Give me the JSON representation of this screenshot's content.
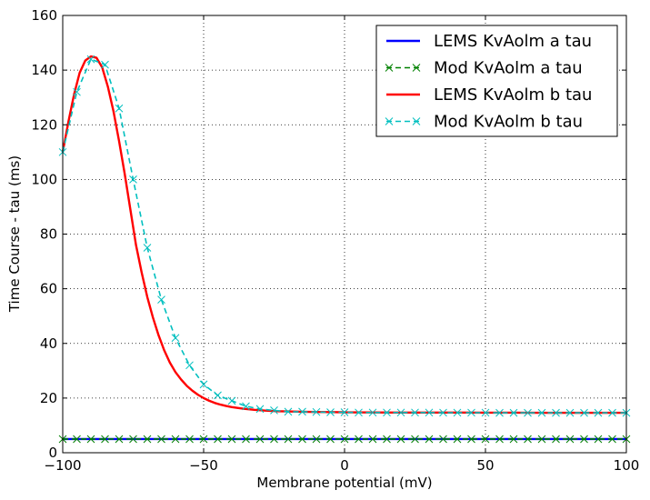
{
  "chart_data": {
    "type": "line",
    "title": "",
    "xlabel": "Membrane potential (mV)",
    "ylabel": "Time Course - tau (ms)",
    "xlim": [
      -100,
      100
    ],
    "ylim": [
      0,
      160
    ],
    "x_ticks": [
      -100,
      -50,
      0,
      50,
      100
    ],
    "x_tick_labels": [
      "−100",
      "−50",
      "0",
      "50",
      "100"
    ],
    "y_ticks": [
      0,
      20,
      40,
      60,
      80,
      100,
      120,
      140,
      160
    ],
    "y_tick_labels": [
      "0",
      "20",
      "40",
      "60",
      "80",
      "100",
      "120",
      "140",
      "160"
    ],
    "grid": true,
    "legend_position": "top-right",
    "series": [
      {
        "name": "LEMS KvAolm a tau",
        "style": "solid",
        "marker": "none",
        "color": "#0000ff",
        "x": [
          -100,
          100
        ],
        "y": [
          5,
          5
        ]
      },
      {
        "name": "Mod KvAolm a tau",
        "style": "dashed",
        "marker": "x",
        "color": "#008000",
        "x": [
          -100,
          -95,
          -90,
          -85,
          -80,
          -75,
          -70,
          -65,
          -60,
          -55,
          -50,
          -45,
          -40,
          -35,
          -30,
          -25,
          -20,
          -15,
          -10,
          -5,
          0,
          5,
          10,
          15,
          20,
          25,
          30,
          35,
          40,
          45,
          50,
          55,
          60,
          65,
          70,
          75,
          80,
          85,
          90,
          95,
          100
        ],
        "y": [
          5,
          5,
          5,
          5,
          5,
          5,
          5,
          5,
          5,
          5,
          5,
          5,
          5,
          5,
          5,
          5,
          5,
          5,
          5,
          5,
          5,
          5,
          5,
          5,
          5,
          5,
          5,
          5,
          5,
          5,
          5,
          5,
          5,
          5,
          5,
          5,
          5,
          5,
          5,
          5,
          5
        ]
      },
      {
        "name": "LEMS KvAolm b tau",
        "style": "solid",
        "marker": "none",
        "color": "#ff0000",
        "x": [
          -100,
          -98,
          -96,
          -94,
          -92,
          -90,
          -88,
          -86,
          -84,
          -82,
          -80,
          -78,
          -76,
          -74,
          -72,
          -70,
          -68,
          -66,
          -64,
          -62,
          -60,
          -58,
          -56,
          -54,
          -52,
          -50,
          -48,
          -46,
          -44,
          -42,
          -40,
          -36,
          -32,
          -28,
          -24,
          -20,
          -15,
          -10,
          -5,
          0,
          10,
          20,
          30,
          40,
          50,
          60,
          70,
          80,
          90,
          100
        ],
        "y": [
          110,
          121,
          131,
          139,
          143.5,
          145,
          144.5,
          141,
          134,
          125,
          114,
          102,
          89,
          76,
          66,
          57,
          49.5,
          43,
          37.5,
          33,
          29.5,
          26.8,
          24.5,
          22.7,
          21.2,
          20,
          19,
          18.2,
          17.6,
          17.1,
          16.7,
          16.1,
          15.7,
          15.4,
          15.2,
          15.1,
          15,
          14.9,
          14.85,
          14.8,
          14.75,
          14.7,
          14.7,
          14.7,
          14.65,
          14.65,
          14.6,
          14.6,
          14.6,
          14.6
        ]
      },
      {
        "name": "Mod KvAolm b tau",
        "style": "dashed",
        "marker": "x",
        "color": "#00bfbf",
        "x": [
          -100,
          -95,
          -90,
          -85,
          -80,
          -75,
          -70,
          -65,
          -60,
          -55,
          -50,
          -45,
          -40,
          -35,
          -30,
          -25,
          -20,
          -15,
          -10,
          -5,
          0,
          5,
          10,
          15,
          20,
          25,
          30,
          35,
          40,
          45,
          50,
          55,
          60,
          65,
          70,
          75,
          80,
          85,
          90,
          95,
          100
        ],
        "y": [
          110,
          132,
          144,
          142,
          126,
          100,
          75,
          56,
          42,
          32,
          25,
          21,
          19,
          17,
          16,
          15.5,
          15,
          15,
          14.9,
          14.8,
          14.8,
          14.7,
          14.7,
          14.7,
          14.7,
          14.7,
          14.7,
          14.65,
          14.65,
          14.65,
          14.65,
          14.6,
          14.6,
          14.6,
          14.6,
          14.6,
          14.6,
          14.6,
          14.6,
          14.6,
          14.6
        ]
      }
    ]
  }
}
